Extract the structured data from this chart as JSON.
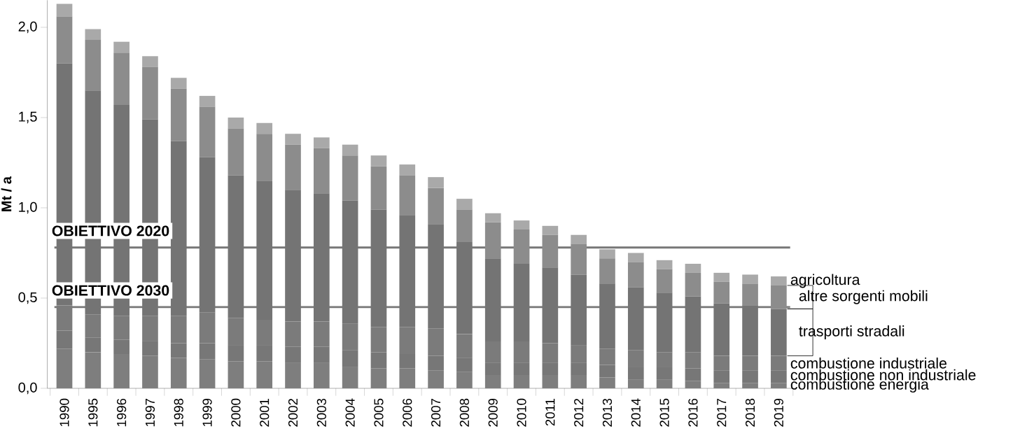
{
  "chart_data": {
    "type": "bar",
    "stacked": true,
    "ylabel": "Mt / a",
    "categories": [
      "1990",
      "1995",
      "1996",
      "1997",
      "1998",
      "1999",
      "2000",
      "2001",
      "2002",
      "2003",
      "2004",
      "2005",
      "2006",
      "2007",
      "2008",
      "2009",
      "2010",
      "2011",
      "2012",
      "2013",
      "2014",
      "2015",
      "2016",
      "2017",
      "2018",
      "2019"
    ],
    "series": [
      {
        "name": "combustione energia",
        "color": "#7e7e7e",
        "values": [
          0.22,
          0.2,
          0.19,
          0.18,
          0.17,
          0.16,
          0.15,
          0.15,
          0.14,
          0.14,
          0.12,
          0.11,
          0.11,
          0.1,
          0.09,
          0.07,
          0.07,
          0.07,
          0.07,
          0.06,
          0.05,
          0.05,
          0.04,
          0.03,
          0.03,
          0.03
        ]
      },
      {
        "name": "combustione non industriale",
        "color": "#777777",
        "values": [
          0.1,
          0.08,
          0.08,
          0.08,
          0.08,
          0.09,
          0.09,
          0.09,
          0.09,
          0.09,
          0.09,
          0.09,
          0.08,
          0.08,
          0.08,
          0.07,
          0.07,
          0.07,
          0.07,
          0.07,
          0.07,
          0.07,
          0.07,
          0.07,
          0.07,
          0.07
        ]
      },
      {
        "name": "combustione industriale",
        "color": "#7b7b7b",
        "values": [
          0.14,
          0.13,
          0.13,
          0.14,
          0.15,
          0.17,
          0.15,
          0.14,
          0.14,
          0.14,
          0.15,
          0.14,
          0.15,
          0.15,
          0.13,
          0.12,
          0.12,
          0.11,
          0.1,
          0.09,
          0.09,
          0.08,
          0.09,
          0.08,
          0.08,
          0.08
        ]
      },
      {
        "name": "trasporti stradali",
        "color": "#747474",
        "values": [
          1.34,
          1.24,
          1.17,
          1.09,
          0.97,
          0.86,
          0.79,
          0.77,
          0.73,
          0.71,
          0.68,
          0.65,
          0.62,
          0.58,
          0.51,
          0.46,
          0.43,
          0.42,
          0.39,
          0.36,
          0.35,
          0.33,
          0.31,
          0.29,
          0.28,
          0.26
        ]
      },
      {
        "name": "altre sorgenti mobili",
        "color": "#8c8c8c",
        "values": [
          0.26,
          0.28,
          0.29,
          0.29,
          0.29,
          0.28,
          0.26,
          0.26,
          0.25,
          0.25,
          0.25,
          0.24,
          0.22,
          0.2,
          0.18,
          0.2,
          0.19,
          0.18,
          0.17,
          0.14,
          0.14,
          0.13,
          0.13,
          0.12,
          0.12,
          0.13
        ]
      },
      {
        "name": "agricoltura",
        "color": "#a9a9a9",
        "values": [
          0.07,
          0.06,
          0.06,
          0.06,
          0.06,
          0.06,
          0.06,
          0.06,
          0.06,
          0.06,
          0.06,
          0.06,
          0.06,
          0.06,
          0.06,
          0.05,
          0.05,
          0.05,
          0.05,
          0.05,
          0.05,
          0.05,
          0.05,
          0.05,
          0.05,
          0.05
        ]
      }
    ],
    "ylim": [
      0,
      2.15
    ],
    "yticks": [
      {
        "value": 0,
        "label": "0,0"
      },
      {
        "value": 0.5,
        "label": "0,5"
      },
      {
        "value": 1.0,
        "label": "1,0"
      },
      {
        "value": 1.5,
        "label": "1,5"
      },
      {
        "value": 2.0,
        "label": "2,0"
      }
    ],
    "ref_lines": [
      {
        "axis": "y",
        "value": 0.78,
        "label": "OBIETTIVO 2020",
        "color": "#777777"
      },
      {
        "axis": "y",
        "value": 0.45,
        "label": "OBIETTIVO 2030",
        "color": "#777777"
      }
    ]
  }
}
